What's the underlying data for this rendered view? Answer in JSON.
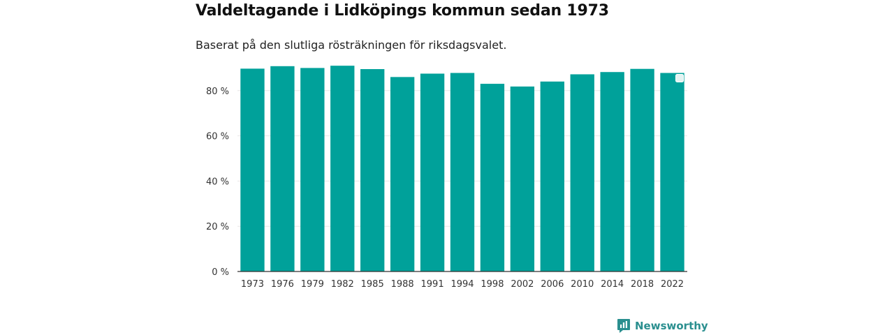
{
  "title": "Valdeltagande i Lidköpings kommun sedan 1973",
  "subtitle": "Baserat på den slutliga rösträkningen för riksdagsvalet.",
  "brand": {
    "name": "Newsworthy",
    "icon": "newsworthy-logo-icon"
  },
  "colors": {
    "bar": "#00a19a",
    "grid": "#e6e6e6",
    "axis": "#333333",
    "brand": "#2a8f8f"
  },
  "chart_data": {
    "type": "bar",
    "categories": [
      "1973",
      "1976",
      "1979",
      "1982",
      "1985",
      "1988",
      "1991",
      "1994",
      "1998",
      "2002",
      "2006",
      "2010",
      "2014",
      "2018",
      "2022"
    ],
    "values": [
      89.7,
      90.8,
      90.0,
      91.0,
      89.5,
      86.0,
      87.5,
      87.8,
      83.0,
      81.8,
      84.0,
      87.2,
      88.2,
      89.6,
      87.8
    ],
    "ylim": [
      0,
      100
    ],
    "yticks": [
      0,
      20,
      40,
      60,
      80
    ],
    "ytick_labels": [
      "0 %",
      "20 %",
      "40 %",
      "60 %",
      "80 %"
    ],
    "grid": true,
    "xlabel": "",
    "ylabel": ""
  }
}
